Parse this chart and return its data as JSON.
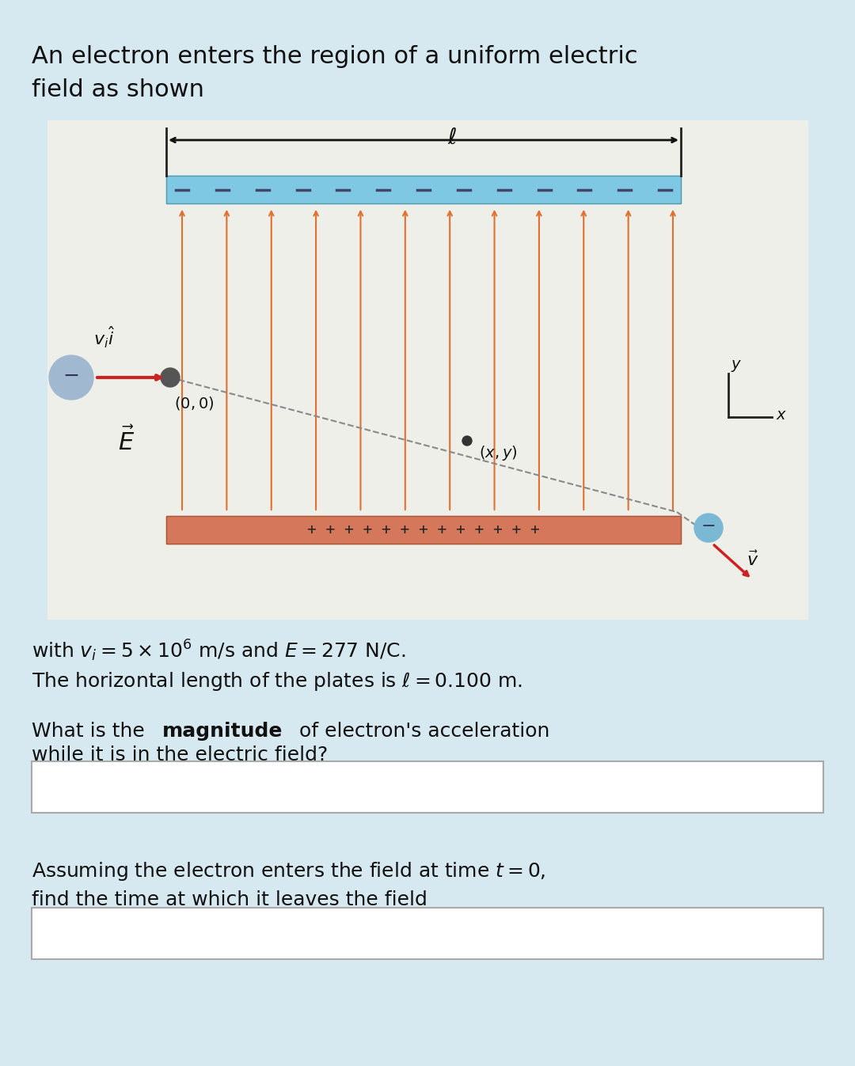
{
  "bg_color": "#d6e8f0",
  "title_text": "An electron enters the region of a uniform electric\nfield as shown",
  "title_fontsize": 22,
  "diagram_bg": "#f5f5f0",
  "plate_top_color": "#7ec8e3",
  "plate_bottom_color": "#d4775a",
  "plate_top_dash_color": "#555577",
  "plate_bottom_plus_color": "#333333",
  "arrow_color": "#e07030",
  "electron_color": "#7ab8d4",
  "electron_entry_color": "#a0b8d0",
  "trajectory_color": "#888888",
  "line1_text": "with $v_i = 5 \\times 10^6$ m/s and $E = 277$ N/C.",
  "line2_text": "The horizontal length of the plates is $\\ell = 0.100$ m.",
  "line3_text": "What is the ",
  "line3_bold": "magnitude",
  "line3_rest": " of electron's acceleration\nwhile it is in the electric field?",
  "line4_text": "Assuming the electron enters the field at time $t = 0$,\nfind the time at which it leaves the field",
  "text_fontsize": 18,
  "input_box_color": "#ffffff"
}
